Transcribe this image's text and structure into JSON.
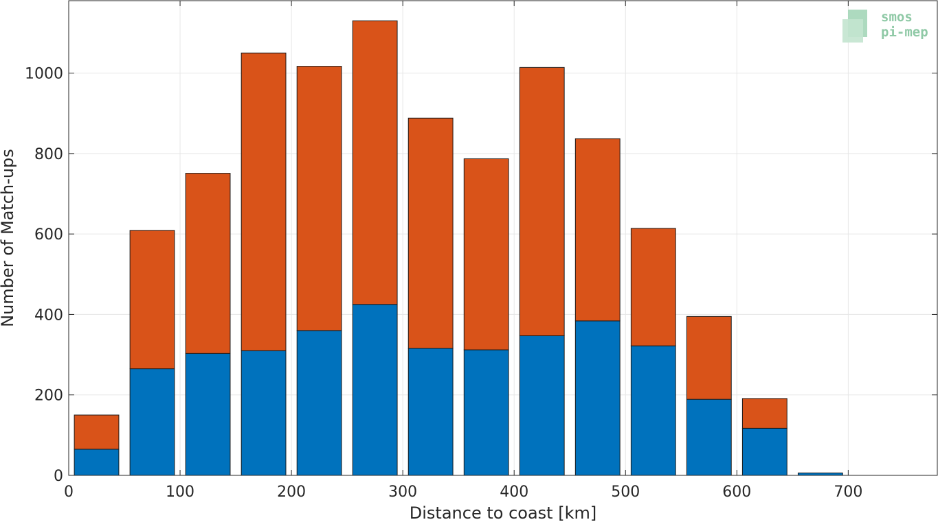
{
  "chart_data": {
    "type": "bar",
    "stacked": true,
    "x_bin_centers": [
      25,
      75,
      125,
      175,
      225,
      275,
      325,
      375,
      425,
      475,
      525,
      575,
      625,
      675,
      725
    ],
    "series": [
      {
        "values": [
          65,
          265,
          303,
          310,
          360,
          425,
          316,
          312,
          347,
          384,
          322,
          189,
          117,
          6,
          0
        ]
      },
      {
        "values": [
          85,
          344,
          448,
          740,
          657,
          705,
          572,
          475,
          667,
          453,
          292,
          206,
          74,
          0,
          0
        ]
      }
    ],
    "totals": [
      150,
      609,
      751,
      1050,
      1017,
      1130,
      888,
      787,
      1014,
      837,
      614,
      395,
      191,
      6,
      0
    ],
    "colors": [
      "#0072bd",
      "#d95319"
    ],
    "xlabel": "Distance to coast [km]",
    "ylabel": "Number of Match-ups",
    "xlim": [
      0,
      780
    ],
    "ylim": [
      0,
      1180
    ],
    "xticks": [
      0,
      100,
      200,
      300,
      400,
      500,
      600,
      700
    ],
    "yticks": [
      0,
      200,
      400,
      600,
      800,
      1000
    ],
    "grid": true
  },
  "logo": {
    "line1": "smos",
    "line2": "pi-mep"
  }
}
